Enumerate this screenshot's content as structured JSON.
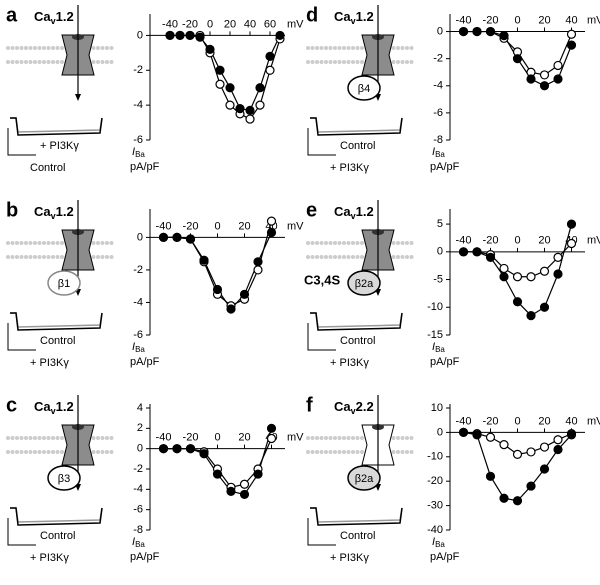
{
  "chart_data": [
    {
      "type": "line",
      "panel": "a",
      "channel": [
        "Ca",
        "v",
        "1.2"
      ],
      "beta": null,
      "channel_color": "#8c8c8c",
      "trace_labels": [
        "+ PI3Kγ",
        "Control"
      ],
      "xunit": "mV",
      "ylabel": [
        "I",
        "Ba"
      ],
      "yunit": "pA/pF",
      "x": [
        -40,
        -30,
        -20,
        -10,
        0,
        10,
        20,
        30,
        40,
        50,
        60,
        70
      ],
      "xlim": [
        -60,
        75
      ],
      "xticks": [
        -40,
        -20,
        0,
        20,
        40,
        60
      ],
      "ylim": [
        -6,
        1
      ],
      "yticks": [
        0,
        -2,
        -4,
        -6
      ],
      "series": [
        {
          "color": "#ffffff",
          "values": [
            0,
            0,
            0,
            0,
            -1.0,
            -2.8,
            -4.0,
            -4.5,
            -4.8,
            -4.0,
            -2.0,
            -0.2
          ]
        },
        {
          "color": "#000000",
          "values": [
            0,
            0,
            0,
            -0.1,
            -0.8,
            -2.0,
            -3.0,
            -4.2,
            -4.3,
            -3.0,
            -1.2,
            0
          ]
        }
      ]
    },
    {
      "type": "line",
      "panel": "d",
      "channel": [
        "Ca",
        "v",
        "1.2"
      ],
      "beta": "β4",
      "beta_color": "#ffffff",
      "channel_color": "#8c8c8c",
      "trace_labels": [
        "Control",
        "+ PI3Kγ"
      ],
      "xunit": "mV",
      "ylabel": [
        "I",
        "Ba"
      ],
      "yunit": "pA/pF",
      "x": [
        -40,
        -30,
        -20,
        -10,
        0,
        10,
        20,
        30,
        40
      ],
      "xlim": [
        -50,
        50
      ],
      "xticks": [
        -40,
        -20,
        0,
        20,
        40
      ],
      "ylim": [
        -8,
        1
      ],
      "yticks": [
        0,
        -2,
        -4,
        -6,
        -8
      ],
      "series": [
        {
          "color": "#ffffff",
          "values": [
            0,
            0,
            0,
            -0.5,
            -1.5,
            -3.0,
            -3.2,
            -2.5,
            -0.2
          ]
        },
        {
          "color": "#000000",
          "values": [
            0,
            0,
            0,
            -0.3,
            -2.0,
            -3.5,
            -4.0,
            -3.5,
            -1.0
          ]
        }
      ]
    },
    {
      "type": "line",
      "panel": "b",
      "channel": [
        "Ca",
        "v",
        "1.2"
      ],
      "beta": "β1",
      "beta_color": "#ffffff",
      "channel_color": "#8c8c8c",
      "trace_labels": [
        "Control",
        "+ PI3Kγ"
      ],
      "xunit": "mV",
      "ylabel": [
        "I",
        "Ba"
      ],
      "yunit": "pA/pF",
      "x": [
        -40,
        -30,
        -20,
        -10,
        0,
        10,
        20,
        30,
        40
      ],
      "xlim": [
        -50,
        50
      ],
      "xticks": [
        -40,
        -20,
        0,
        20,
        40
      ],
      "ylim": [
        -6,
        1.5
      ],
      "yticks": [
        0,
        -2,
        -4,
        -6
      ],
      "series": [
        {
          "color": "#ffffff",
          "values": [
            0,
            0,
            -0.1,
            -1.5,
            -3.5,
            -4.2,
            -3.8,
            -2.0,
            1.0
          ]
        },
        {
          "color": "#000000",
          "values": [
            0,
            0,
            -0.1,
            -1.4,
            -3.2,
            -4.4,
            -3.5,
            -1.5,
            0.3
          ]
        }
      ]
    },
    {
      "type": "line",
      "panel": "e",
      "channel": [
        "Ca",
        "v",
        "1.2"
      ],
      "beta": "β2a",
      "beta_color": "#d9d9d9",
      "channel_color": "#8c8c8c",
      "mutant": "C3,4S",
      "trace_labels": [
        "Control",
        "+ PI3Kγ"
      ],
      "xunit": "mV",
      "ylabel": [
        "I",
        "Ba"
      ],
      "yunit": "pA/pF",
      "x": [
        -40,
        -30,
        -20,
        -10,
        0,
        10,
        20,
        30,
        40
      ],
      "xlim": [
        -50,
        50
      ],
      "xticks": [
        -40,
        -20,
        0,
        20,
        40
      ],
      "ylim": [
        -15,
        7
      ],
      "yticks": [
        5,
        0,
        -5,
        -10,
        -15
      ],
      "series": [
        {
          "color": "#ffffff",
          "values": [
            0,
            0,
            -0.5,
            -3.0,
            -4.5,
            -4.5,
            -3.5,
            -1.0,
            1.5
          ]
        },
        {
          "color": "#000000",
          "values": [
            0,
            0,
            -1.0,
            -4.5,
            -9.0,
            -11.5,
            -10.0,
            -4.0,
            5.0
          ]
        }
      ]
    },
    {
      "type": "line",
      "panel": "c",
      "channel": [
        "Ca",
        "v",
        "1.2"
      ],
      "beta": "β3",
      "beta_color": "#ffffff",
      "channel_color": "#8c8c8c",
      "trace_labels": [
        "Control",
        "+ PI3Kγ"
      ],
      "xunit": "mV",
      "ylabel": [
        "I",
        "Ba"
      ],
      "yunit": "pA/pF",
      "x": [
        -40,
        -30,
        -20,
        -10,
        0,
        10,
        20,
        30,
        40
      ],
      "xlim": [
        -50,
        50
      ],
      "xticks": [
        -40,
        -20,
        0,
        20,
        40
      ],
      "ylim": [
        -8,
        4
      ],
      "yticks": [
        4,
        2,
        0,
        -2,
        -4,
        -6,
        -8
      ],
      "series": [
        {
          "color": "#ffffff",
          "values": [
            0,
            0,
            0,
            -0.3,
            -2.0,
            -3.8,
            -3.5,
            -2.0,
            1.0
          ]
        },
        {
          "color": "#000000",
          "values": [
            0,
            0,
            0,
            -0.5,
            -2.5,
            -4.2,
            -4.5,
            -2.5,
            2.0
          ]
        }
      ]
    },
    {
      "type": "line",
      "panel": "f",
      "channel": [
        "Ca",
        "v",
        "2.2"
      ],
      "beta": "β2a",
      "beta_color": "#d9d9d9",
      "channel_color": "#ffffff",
      "trace_labels": [
        "Control",
        "+ PI3Kγ"
      ],
      "xunit": "mV",
      "ylabel": [
        "I",
        "Ba"
      ],
      "yunit": "pA/pF",
      "x": [
        -40,
        -30,
        -20,
        -10,
        0,
        10,
        20,
        30,
        40
      ],
      "xlim": [
        -50,
        50
      ],
      "xticks": [
        -40,
        -20,
        0,
        20,
        40
      ],
      "ylim": [
        -40,
        10
      ],
      "yticks": [
        10,
        0,
        -10,
        -20,
        -30,
        -40
      ],
      "series": [
        {
          "color": "#ffffff",
          "values": [
            0,
            -0.5,
            -2.0,
            -5.0,
            -9.0,
            -8.0,
            -6.0,
            -3.0,
            -0.5
          ]
        },
        {
          "color": "#000000",
          "values": [
            0,
            -1.0,
            -18.0,
            -27.0,
            -28.0,
            -22.0,
            -15.0,
            -7.0,
            -1.0
          ]
        }
      ]
    }
  ]
}
